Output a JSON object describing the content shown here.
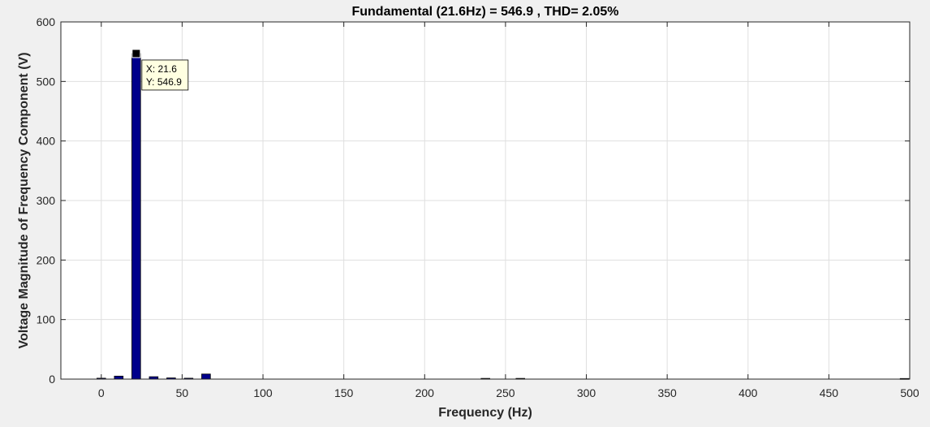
{
  "chart_data": {
    "type": "bar",
    "title": "Fundamental (21.6Hz) = 546.9 , THD= 2.05%",
    "xlabel": "Frequency (Hz)",
    "ylabel": "Voltage Magnitude of Frequency Component (V)",
    "xlim": [
      -25,
      500
    ],
    "ylim": [
      0,
      600
    ],
    "xticks": [
      0,
      50,
      100,
      150,
      200,
      250,
      300,
      350,
      400,
      450,
      500
    ],
    "yticks": [
      0,
      100,
      200,
      300,
      400,
      500,
      600
    ],
    "grid": true,
    "bar_color": "#00008b",
    "bar_width_hz": 5.4,
    "x": [
      0,
      10.8,
      21.6,
      32.4,
      43.2,
      54,
      64.8,
      237.6,
      259.2,
      496.8
    ],
    "values": [
      1.5,
      5,
      546.9,
      4,
      2,
      1.5,
      8.5,
      1.2,
      1.2,
      1
    ],
    "datatip": {
      "x_text": "X: 21.6",
      "y_text": "Y: 546.9",
      "x": 21.6,
      "y": 546.9
    }
  }
}
